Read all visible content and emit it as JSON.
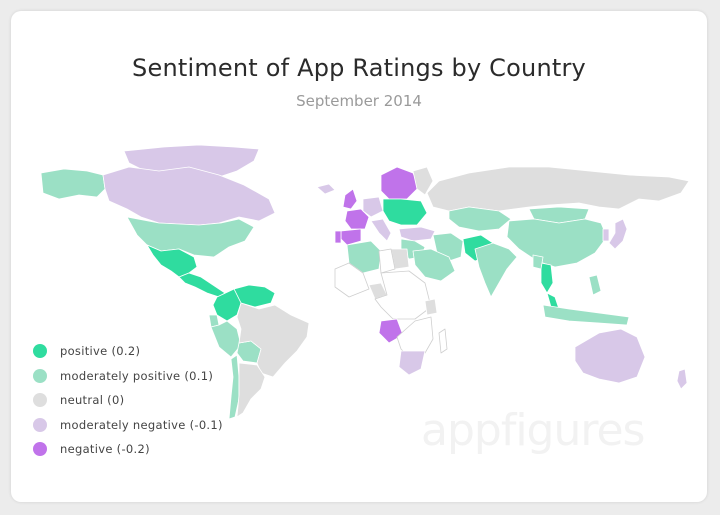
{
  "title": "Sentiment of App Ratings by Country",
  "subtitle": "September 2014",
  "watermark": "appfigures",
  "colors": {
    "positive": "#2fdc9f",
    "moderately_positive": "#9be0c5",
    "neutral": "#dedede",
    "moderately_negative": "#d8c8e8",
    "negative": "#c073ea",
    "no_data": "#ffffff",
    "border": "#cfcfcf"
  },
  "legend": [
    {
      "key": "positive",
      "label": "positive (0.2)",
      "color": "#2fdc9f"
    },
    {
      "key": "moderately_positive",
      "label": "moderately positive (0.1)",
      "color": "#9be0c5"
    },
    {
      "key": "neutral",
      "label": "neutral (0)",
      "color": "#dedede"
    },
    {
      "key": "moderately_negative",
      "label": "moderately negative (-0.1)",
      "color": "#d8c8e8"
    },
    {
      "key": "negative",
      "label": "negative (-0.2)",
      "color": "#c073ea"
    }
  ],
  "regions": [
    {
      "name": "Greenland",
      "sentiment": -0.1
    },
    {
      "name": "Alaska",
      "sentiment": 0.1
    },
    {
      "name": "Canada",
      "sentiment": -0.1
    },
    {
      "name": "United States",
      "sentiment": 0.1
    },
    {
      "name": "Mexico",
      "sentiment": 0.2
    },
    {
      "name": "Central America",
      "sentiment": 0.2
    },
    {
      "name": "Venezuela",
      "sentiment": 0.2
    },
    {
      "name": "Colombia",
      "sentiment": 0.2
    },
    {
      "name": "Ecuador",
      "sentiment": 0.1
    },
    {
      "name": "Peru",
      "sentiment": 0.1
    },
    {
      "name": "Bolivia",
      "sentiment": 0.1
    },
    {
      "name": "Brazil",
      "sentiment": 0
    },
    {
      "name": "Chile",
      "sentiment": 0.1
    },
    {
      "name": "Argentina",
      "sentiment": 0
    },
    {
      "name": "Iceland",
      "sentiment": -0.1
    },
    {
      "name": "United Kingdom",
      "sentiment": -0.2
    },
    {
      "name": "France",
      "sentiment": -0.2
    },
    {
      "name": "Spain",
      "sentiment": -0.2
    },
    {
      "name": "Portugal",
      "sentiment": -0.2
    },
    {
      "name": "Germany",
      "sentiment": -0.1
    },
    {
      "name": "Italy",
      "sentiment": -0.1
    },
    {
      "name": "Scandinavia",
      "sentiment": -0.2
    },
    {
      "name": "Finland",
      "sentiment": 0
    },
    {
      "name": "Central Europe",
      "sentiment": 0.2
    },
    {
      "name": "Turkey",
      "sentiment": -0.1
    },
    {
      "name": "Russia",
      "sentiment": 0
    },
    {
      "name": "Kazakhstan",
      "sentiment": 0.1
    },
    {
      "name": "Mongolia",
      "sentiment": 0.1
    },
    {
      "name": "China",
      "sentiment": 0.1
    },
    {
      "name": "Japan",
      "sentiment": -0.1
    },
    {
      "name": "Korea",
      "sentiment": -0.1
    },
    {
      "name": "Middle East",
      "sentiment": 0.1
    },
    {
      "name": "Iran",
      "sentiment": 0.1
    },
    {
      "name": "Saudi Arabia",
      "sentiment": 0.1
    },
    {
      "name": "Pakistan",
      "sentiment": 0.2
    },
    {
      "name": "India",
      "sentiment": 0.1
    },
    {
      "name": "Thailand",
      "sentiment": 0.2
    },
    {
      "name": "Southeast Asia",
      "sentiment": 0.1
    },
    {
      "name": "Malaysia",
      "sentiment": 0.2
    },
    {
      "name": "Indonesia",
      "sentiment": 0.1
    },
    {
      "name": "Philippines",
      "sentiment": 0.1
    },
    {
      "name": "Algeria",
      "sentiment": 0.1
    },
    {
      "name": "Egypt",
      "sentiment": 0
    },
    {
      "name": "North Africa",
      "sentiment": null
    },
    {
      "name": "West Africa",
      "sentiment": null
    },
    {
      "name": "Nigeria",
      "sentiment": 0
    },
    {
      "name": "Central Africa",
      "sentiment": null
    },
    {
      "name": "Angola",
      "sentiment": -0.2
    },
    {
      "name": "Kenya",
      "sentiment": 0
    },
    {
      "name": "Southern Africa",
      "sentiment": null
    },
    {
      "name": "South Africa",
      "sentiment": -0.1
    },
    {
      "name": "Madagascar",
      "sentiment": null
    },
    {
      "name": "Australia",
      "sentiment": -0.1
    },
    {
      "name": "New Zealand",
      "sentiment": -0.1
    }
  ]
}
